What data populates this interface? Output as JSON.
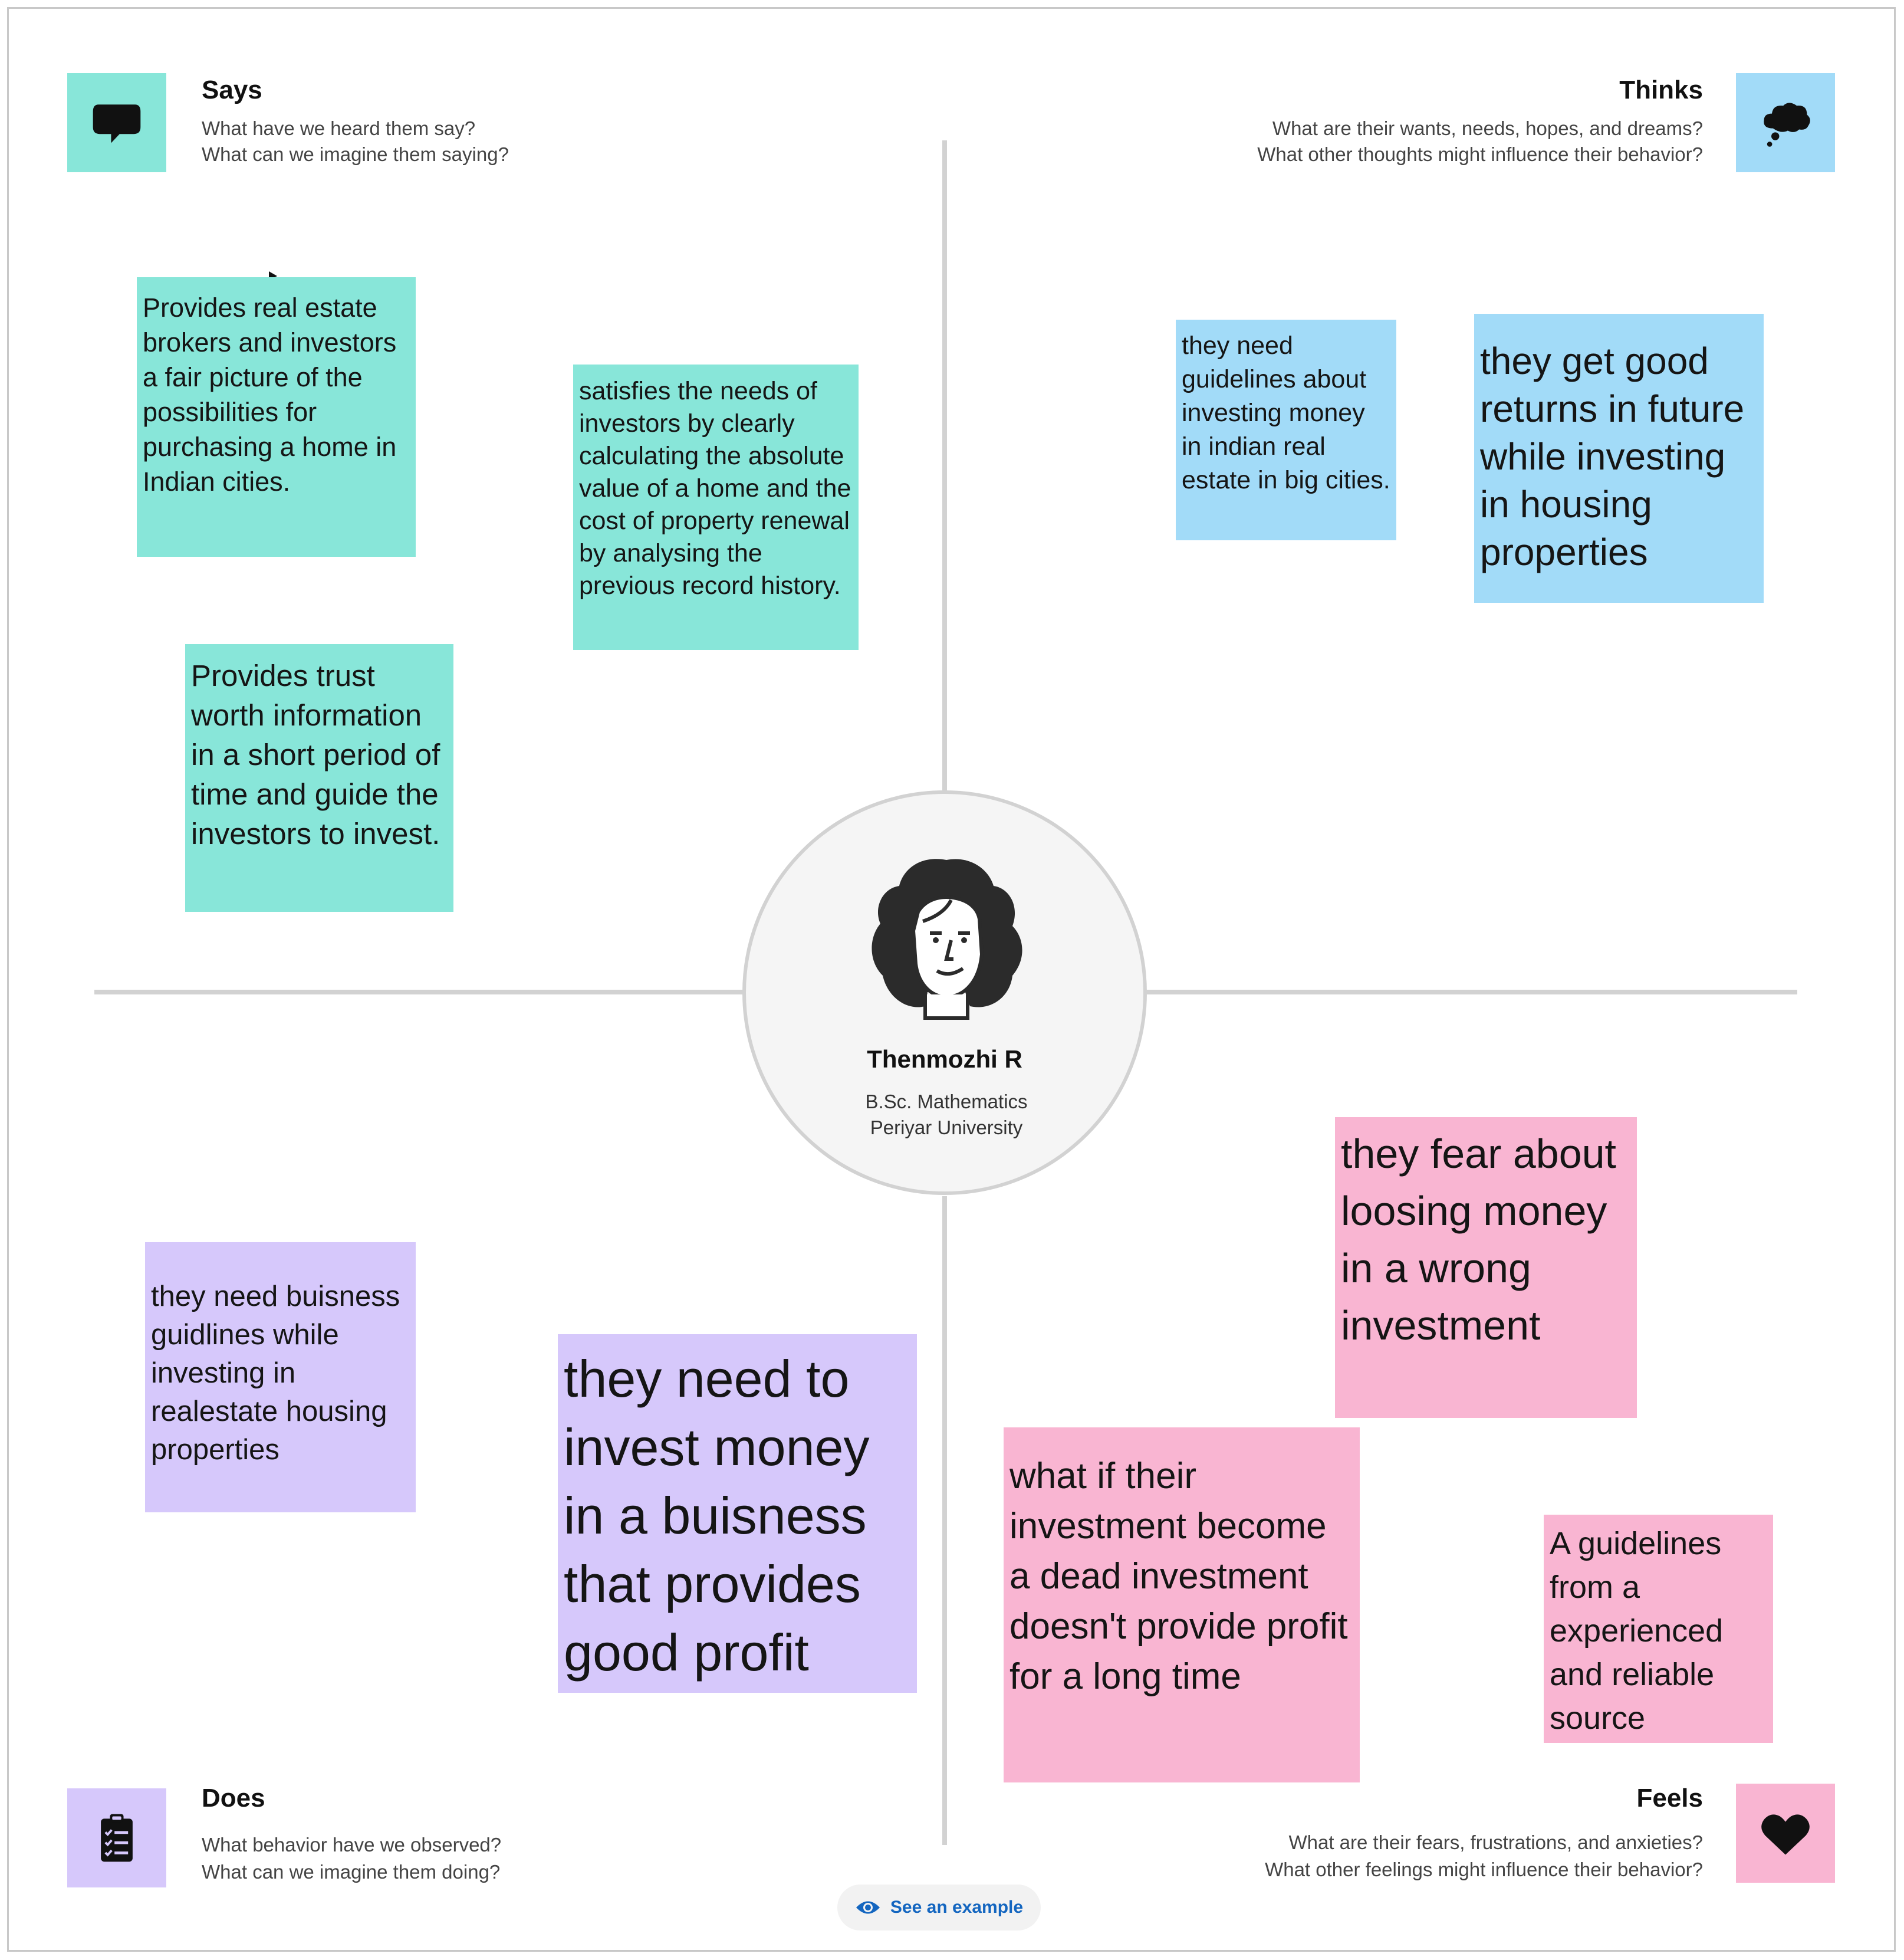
{
  "quadrants": {
    "says": {
      "title": "Says",
      "q1": "What have we heard them say?",
      "q2": "What can we imagine them saying?",
      "icon": "speech-bubble-icon",
      "color": "#88e6d9"
    },
    "thinks": {
      "title": "Thinks",
      "q1": "What are their wants, needs, hopes, and dreams?",
      "q2": "What other thoughts might influence their behavior?",
      "icon": "thought-cloud-icon",
      "color": "#a2dbf8"
    },
    "does": {
      "title": "Does",
      "q1": "What behavior have we observed?",
      "q2": "What can we imagine them doing?",
      "icon": "clipboard-icon",
      "color": "#d6c8fb"
    },
    "feels": {
      "title": "Feels",
      "q1": "What are their fears, frustrations, and anxieties?",
      "q2": "What other feelings might influence their behavior?",
      "icon": "heart-icon",
      "color": "#f9b5d2"
    }
  },
  "persona": {
    "name": "Thenmozhi R",
    "line1": "B.Sc. Mathematics",
    "line2": "Periyar University",
    "icon": "person-avatar-icon"
  },
  "notes": {
    "says": [
      "Provides real estate brokers and investors a fair picture of the possibilities for purchasing a home in Indian cities.",
      "satisfies the needs of investors by clearly calculating the absolute value of a home and the cost of property renewal by analysing the previous record history.",
      "Provides trust worth information in a short period of time and guide the investors to invest."
    ],
    "thinks": [
      "they need guidelines about investing money in indian real estate in big cities.",
      "they get good returns in future while investing in housing properties"
    ],
    "does": [
      "they need buisness guidlines while investing in realestate housing properties",
      "they need to invest money in a buisness that provides good profit"
    ],
    "feels": [
      "they fear about loosing money in a wrong investment",
      "what if their investment become a dead investment doesn't provide profit for a long time",
      "A guidelines from a experienced and reliable source"
    ]
  },
  "example_button": {
    "label": "See an example",
    "icon": "eye-icon",
    "color": "#1466c0"
  }
}
